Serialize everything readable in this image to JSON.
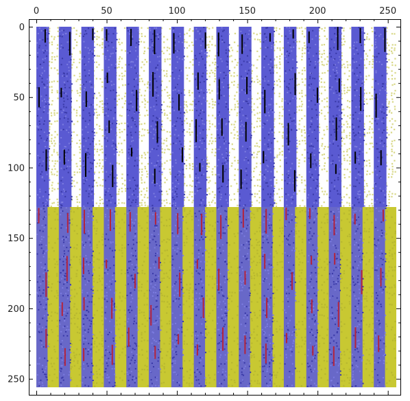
{
  "chart_data": {
    "type": "heatmap",
    "title": "",
    "xlabel": "",
    "ylabel": "",
    "xlim": [
      0,
      256
    ],
    "ylim": [
      256,
      0
    ],
    "x_ticks": [
      0,
      50,
      100,
      150,
      200,
      250
    ],
    "y_ticks": [
      0,
      50,
      100,
      150,
      200,
      250
    ],
    "x_tick_labels": [
      "0",
      "50",
      "100",
      "150",
      "200",
      "250"
    ],
    "y_tick_labels": [
      "0",
      "50",
      "100",
      "150",
      "200",
      "250"
    ],
    "x_axis_position": "top",
    "grid": false,
    "regions": [
      {
        "name": "upper",
        "rows": [
          0,
          128
        ],
        "cols": [
          0,
          256
        ],
        "band_period": 16,
        "band_width": 9,
        "band_color": "#5a5ad2",
        "background_color": "#ffffff",
        "speckle_color": "#d9d98a",
        "stripe_color": "#000000"
      },
      {
        "name": "lower",
        "rows": [
          128,
          256
        ],
        "cols": [
          0,
          256
        ],
        "band_period": 16,
        "band_width": 8,
        "band_color": "#6868c8",
        "background_color": "#c8c832",
        "speckle_color": "#c8c832",
        "stripe_color": "#b4233c"
      }
    ]
  }
}
